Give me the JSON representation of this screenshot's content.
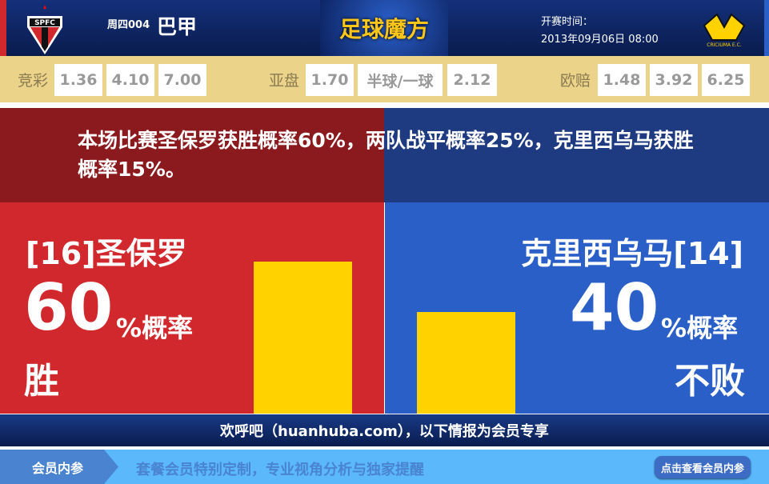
{
  "header": {
    "match_no": "周四004",
    "league": "巴甲",
    "brand": "足球魔方",
    "kickoff_label": "开赛时间：",
    "kickoff_time": "2013年09月06日 08:00",
    "home_logo_text": "SPFC",
    "away_logo_text": "CRICIUMA E.C."
  },
  "odds": {
    "jingcai": {
      "label": "竞彩",
      "values": [
        "1.36",
        "4.10",
        "7.00"
      ]
    },
    "asian": {
      "label": "亚盘",
      "values": [
        "1.70",
        "半球/一球",
        "2.12"
      ]
    },
    "euro": {
      "label": "欧赔",
      "values": [
        "1.48",
        "3.92",
        "6.25"
      ]
    }
  },
  "summary": "本场比赛圣保罗获胜概率60%，两队战平概率25%，克里西乌马获胜概率15%。",
  "home": {
    "name": "[16]圣保罗",
    "pct": "60",
    "pct_suffix": "%概率",
    "result": "胜",
    "bar_percent": 60,
    "color": "#d0282c"
  },
  "away": {
    "name": "克里西乌马[14]",
    "pct": "40",
    "pct_suffix": "%概率",
    "result": "不败",
    "bar_percent": 40,
    "color": "#2a5fc8"
  },
  "bar_color": "#ffd200",
  "footer": "欢呼吧（huanhuba.com），以下情报为会员专享",
  "strip": {
    "tab": "会员内参",
    "text": "套餐会员特别定制，专业视角分析与独家提醒",
    "button": "点击查看会员内参"
  }
}
